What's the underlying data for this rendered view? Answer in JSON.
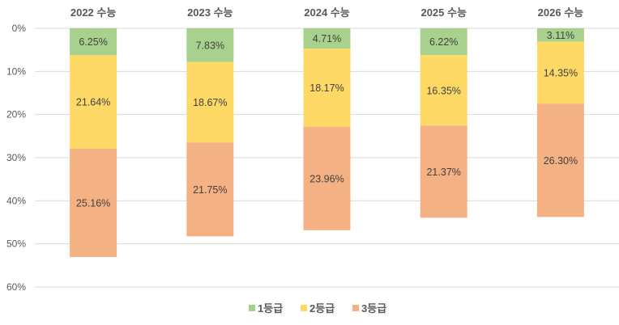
{
  "chart_data": {
    "type": "bar",
    "stacked": true,
    "y_inverted": true,
    "categories": [
      "2022 수능",
      "2023 수능",
      "2024 수능",
      "2025 수능",
      "2026 수능"
    ],
    "series": [
      {
        "name": "1등급",
        "color": "#a9d18e",
        "values": [
          6.25,
          7.83,
          4.71,
          6.22,
          3.11
        ]
      },
      {
        "name": "2등급",
        "color": "#ffd966",
        "values": [
          21.64,
          18.67,
          18.17,
          16.35,
          14.35
        ]
      },
      {
        "name": "3등급",
        "color": "#f4b183",
        "values": [
          25.16,
          21.75,
          23.96,
          21.37,
          26.3
        ]
      }
    ],
    "data_labels": [
      [
        "6.25%",
        "7.83%",
        "4.71%",
        "6.22%",
        "3.11%"
      ],
      [
        "21.64%",
        "18.67%",
        "18.17%",
        "16.35%",
        "14.35%"
      ],
      [
        "25.16%",
        "21.75%",
        "23.96%",
        "21.37%",
        "26.30%"
      ]
    ],
    "ylim": [
      0,
      60
    ],
    "yticks": [
      0,
      10,
      20,
      30,
      40,
      50,
      60
    ],
    "ytick_labels": [
      "0%",
      "10%",
      "20%",
      "30%",
      "40%",
      "50%",
      "60%"
    ],
    "grid": true,
    "legend_position": "bottom",
    "title": "",
    "xlabel": "",
    "ylabel": ""
  }
}
